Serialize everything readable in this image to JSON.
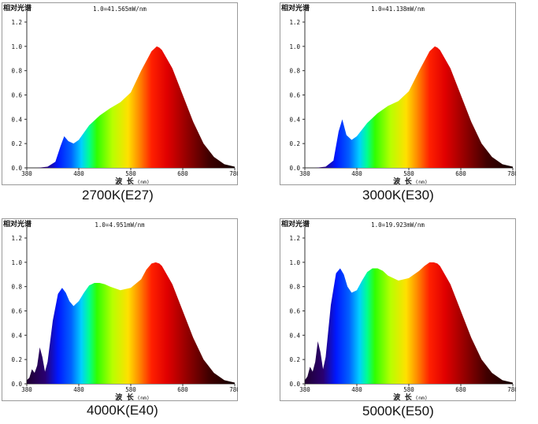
{
  "chart_data": [
    {
      "type": "area",
      "caption": "2700K(E27)",
      "ylabel": "相对光谱",
      "xlabel": "波 长",
      "xunit": "(nm)",
      "scale_note": "1.0=41.565mW/nm",
      "xlim": [
        380,
        780
      ],
      "ylim": [
        0,
        1.2
      ],
      "xticks": [
        380,
        480,
        580,
        680,
        780
      ],
      "yticks": [
        0.0,
        0.2,
        0.4,
        0.6,
        0.8,
        1.0,
        1.2
      ],
      "x": [
        380,
        400,
        420,
        435,
        445,
        452,
        460,
        470,
        480,
        500,
        520,
        540,
        560,
        580,
        600,
        620,
        630,
        635,
        640,
        660,
        680,
        700,
        720,
        740,
        760,
        780
      ],
      "y": [
        0.0,
        0.0,
        0.01,
        0.05,
        0.18,
        0.26,
        0.22,
        0.2,
        0.23,
        0.35,
        0.43,
        0.49,
        0.54,
        0.62,
        0.8,
        0.96,
        1.0,
        0.99,
        0.97,
        0.82,
        0.6,
        0.38,
        0.2,
        0.09,
        0.03,
        0.01
      ]
    },
    {
      "type": "area",
      "caption": "3000K(E30)",
      "ylabel": "相对光谱",
      "xlabel": "波 长",
      "xunit": "(nm)",
      "scale_note": "1.0=41.138mW/nm",
      "xlim": [
        380,
        780
      ],
      "ylim": [
        0,
        1.2
      ],
      "xticks": [
        380,
        480,
        580,
        680,
        780
      ],
      "yticks": [
        0.0,
        0.2,
        0.4,
        0.6,
        0.8,
        1.0,
        1.2
      ],
      "x": [
        380,
        400,
        420,
        435,
        445,
        452,
        460,
        470,
        480,
        500,
        520,
        540,
        560,
        580,
        600,
        620,
        630,
        635,
        640,
        660,
        680,
        700,
        720,
        740,
        760,
        780
      ],
      "y": [
        0.0,
        0.0,
        0.01,
        0.06,
        0.3,
        0.4,
        0.27,
        0.23,
        0.26,
        0.37,
        0.45,
        0.51,
        0.55,
        0.63,
        0.8,
        0.96,
        1.0,
        0.99,
        0.97,
        0.82,
        0.6,
        0.38,
        0.2,
        0.09,
        0.03,
        0.01
      ]
    },
    {
      "type": "area",
      "caption": "4000K(E40)",
      "ylabel": "相对光谱",
      "xlabel": "波 长",
      "xunit": "(nm)",
      "scale_note": "1.0=4.951mW/nm",
      "xlim": [
        380,
        780
      ],
      "ylim": [
        0,
        1.2
      ],
      "xticks": [
        380,
        480,
        580,
        680,
        780
      ],
      "yticks": [
        0.0,
        0.2,
        0.4,
        0.6,
        0.8,
        1.0,
        1.2
      ],
      "x": [
        380,
        385,
        390,
        395,
        400,
        405,
        410,
        415,
        420,
        430,
        440,
        448,
        455,
        462,
        470,
        480,
        490,
        500,
        510,
        520,
        530,
        540,
        560,
        580,
        600,
        610,
        620,
        628,
        635,
        640,
        660,
        680,
        700,
        720,
        740,
        760,
        780
      ],
      "y": [
        0.03,
        0.05,
        0.12,
        0.09,
        0.15,
        0.3,
        0.22,
        0.1,
        0.18,
        0.52,
        0.74,
        0.79,
        0.75,
        0.68,
        0.64,
        0.68,
        0.75,
        0.81,
        0.83,
        0.83,
        0.82,
        0.8,
        0.77,
        0.79,
        0.86,
        0.94,
        0.99,
        1.0,
        0.99,
        0.97,
        0.82,
        0.6,
        0.38,
        0.2,
        0.09,
        0.03,
        0.01
      ]
    },
    {
      "type": "area",
      "caption": "5000K(E50)",
      "ylabel": "相对光谱",
      "xlabel": "波 长",
      "xunit": "(nm)",
      "scale_note": "1.0=19.923mW/nm",
      "xlim": [
        380,
        780
      ],
      "ylim": [
        0,
        1.2
      ],
      "xticks": [
        380,
        480,
        580,
        680,
        780
      ],
      "yticks": [
        0.0,
        0.2,
        0.4,
        0.6,
        0.8,
        1.0,
        1.2
      ],
      "x": [
        380,
        385,
        390,
        395,
        400,
        405,
        410,
        415,
        420,
        430,
        440,
        448,
        455,
        462,
        470,
        480,
        490,
        500,
        510,
        520,
        530,
        540,
        560,
        580,
        600,
        610,
        620,
        628,
        635,
        640,
        660,
        680,
        700,
        720,
        740,
        760,
        780
      ],
      "y": [
        0.03,
        0.06,
        0.14,
        0.1,
        0.18,
        0.35,
        0.26,
        0.12,
        0.22,
        0.65,
        0.91,
        0.95,
        0.9,
        0.8,
        0.75,
        0.77,
        0.85,
        0.92,
        0.95,
        0.95,
        0.93,
        0.89,
        0.85,
        0.87,
        0.93,
        0.97,
        1.0,
        1.0,
        0.99,
        0.97,
        0.82,
        0.6,
        0.38,
        0.2,
        0.09,
        0.03,
        0.01
      ]
    }
  ]
}
